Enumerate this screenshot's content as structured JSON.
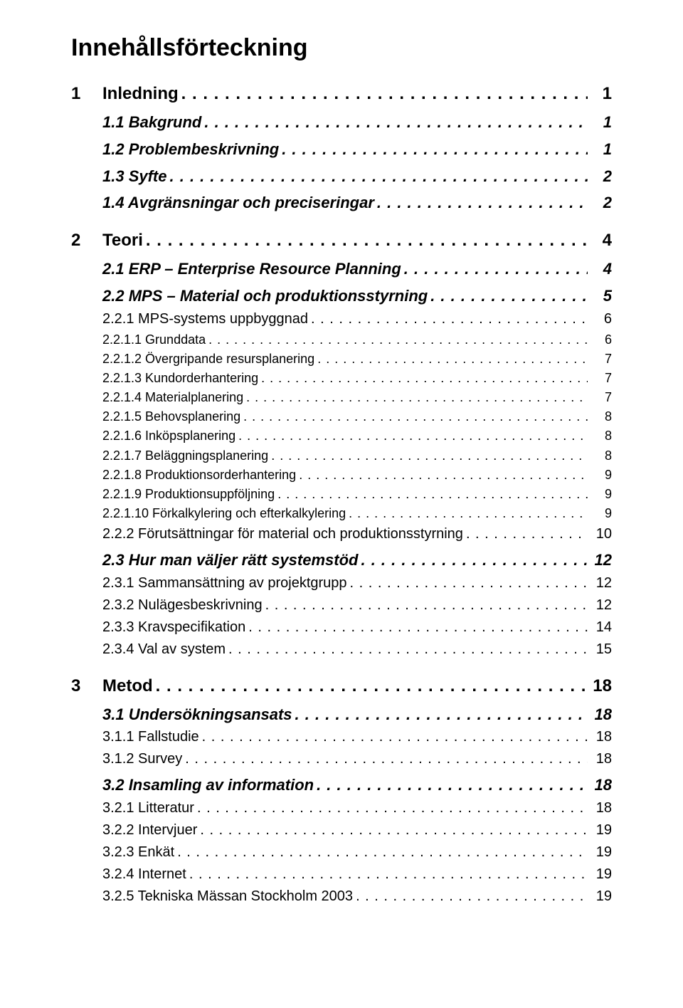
{
  "title": "Innehållsförteckning",
  "entries": [
    {
      "level": 1,
      "num": "1",
      "text": "Inledning",
      "page": "1"
    },
    {
      "level": 2,
      "num": "1.1",
      "text": "Bakgrund",
      "page": "1"
    },
    {
      "level": 2,
      "num": "1.2",
      "text": "Problembeskrivning",
      "page": "1"
    },
    {
      "level": 2,
      "num": "1.3",
      "text": "Syfte",
      "page": "2"
    },
    {
      "level": 2,
      "num": "1.4",
      "text": "Avgränsningar och preciseringar",
      "page": "2"
    },
    {
      "level": 1,
      "num": "2",
      "text": "Teori",
      "page": "4"
    },
    {
      "level": 2,
      "num": "2.1",
      "text": "ERP – Enterprise Resource Planning",
      "page": "4"
    },
    {
      "level": 2,
      "num": "2.2",
      "text": "MPS – Material och produktionsstyrning",
      "page": "5"
    },
    {
      "level": 3,
      "num": "2.2.1",
      "text": "MPS-systems uppbyggnad",
      "page": "6"
    },
    {
      "level": 4,
      "num": "2.2.1.1",
      "text": "Grunddata",
      "page": "6"
    },
    {
      "level": 4,
      "num": "2.2.1.2",
      "text": "Övergripande resursplanering",
      "page": "7"
    },
    {
      "level": 4,
      "num": "2.2.1.3",
      "text": "Kundorderhantering",
      "page": "7"
    },
    {
      "level": 4,
      "num": "2.2.1.4",
      "text": "Materialplanering",
      "page": "7"
    },
    {
      "level": 4,
      "num": "2.2.1.5",
      "text": "Behovsplanering",
      "page": "8"
    },
    {
      "level": 4,
      "num": "2.2.1.6",
      "text": "Inköpsplanering",
      "page": "8"
    },
    {
      "level": 4,
      "num": "2.2.1.7",
      "text": "Beläggningsplanering",
      "page": "8"
    },
    {
      "level": 4,
      "num": "2.2.1.8",
      "text": "Produktionsorderhantering",
      "page": "9"
    },
    {
      "level": 4,
      "num": "2.2.1.9",
      "text": "Produktionsuppföljning",
      "page": "9"
    },
    {
      "level": 4,
      "num": "2.2.1.10",
      "text": "Förkalkylering och efterkalkylering",
      "page": "9"
    },
    {
      "level": 3,
      "num": "2.2.2",
      "text": "Förutsättningar för material och produktionsstyrning",
      "page": "10"
    },
    {
      "level": 2,
      "num": "2.3",
      "text": "Hur man väljer rätt systemstöd",
      "page": "12"
    },
    {
      "level": 3,
      "num": "2.3.1",
      "text": "Sammansättning av projektgrupp",
      "page": "12"
    },
    {
      "level": 3,
      "num": "2.3.2",
      "text": "Nulägesbeskrivning",
      "page": "12"
    },
    {
      "level": 3,
      "num": "2.3.3",
      "text": "Kravspecifikation",
      "page": "14"
    },
    {
      "level": 3,
      "num": "2.3.4",
      "text": "Val av system",
      "page": "15"
    },
    {
      "level": 1,
      "num": "3",
      "text": "Metod",
      "page": "18"
    },
    {
      "level": 2,
      "num": "3.1",
      "text": "Undersökningsansats",
      "page": "18"
    },
    {
      "level": 3,
      "num": "3.1.1",
      "text": "Fallstudie",
      "page": "18"
    },
    {
      "level": 3,
      "num": "3.1.2",
      "text": "Survey",
      "page": "18"
    },
    {
      "level": 2,
      "num": "3.2",
      "text": "Insamling av information",
      "page": "18"
    },
    {
      "level": 3,
      "num": "3.2.1",
      "text": "Litteratur",
      "page": "18"
    },
    {
      "level": 3,
      "num": "3.2.2",
      "text": "Intervjuer",
      "page": "19"
    },
    {
      "level": 3,
      "num": "3.2.3",
      "text": "Enkät",
      "page": "19"
    },
    {
      "level": 3,
      "num": "3.2.4",
      "text": "Internet",
      "page": "19"
    },
    {
      "level": 3,
      "num": "3.2.5",
      "text": "Tekniska Mässan Stockholm 2003",
      "page": "19"
    }
  ]
}
